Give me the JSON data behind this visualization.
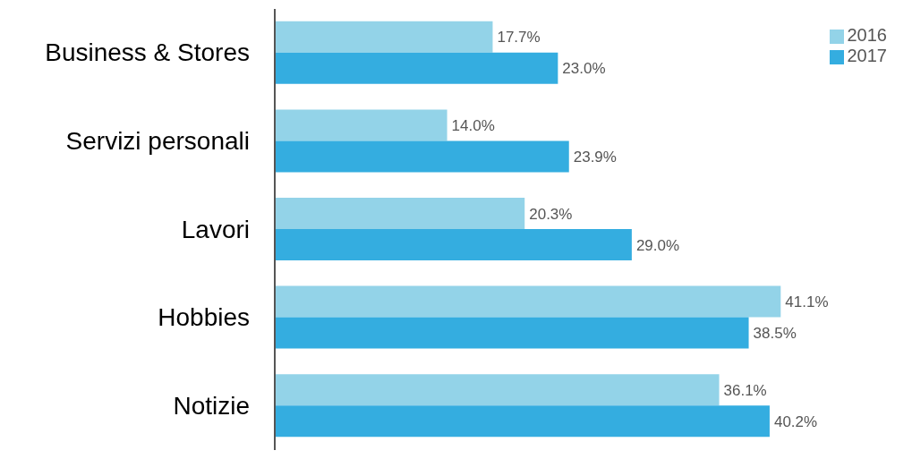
{
  "chart_data": {
    "type": "bar",
    "orientation": "horizontal",
    "categories": [
      "Business & Stores",
      "Servizi personali",
      "Lavori",
      "Hobbies",
      "Notizie"
    ],
    "series": [
      {
        "name": "2016",
        "color": "#93d3e8",
        "values": [
          17.7,
          14.0,
          20.3,
          41.1,
          36.1
        ],
        "value_labels": [
          "17.7%",
          "14.0%",
          "20.3%",
          "41.1%",
          "36.1%"
        ]
      },
      {
        "name": "2017",
        "color": "#34ade0",
        "values": [
          23.0,
          23.9,
          29.0,
          38.5,
          40.2
        ],
        "value_labels": [
          "23.0%",
          "23.9%",
          "29.0%",
          "38.5%",
          "40.2%"
        ]
      }
    ],
    "legend": "top right",
    "grid": false,
    "tick_labels": "y"
  }
}
